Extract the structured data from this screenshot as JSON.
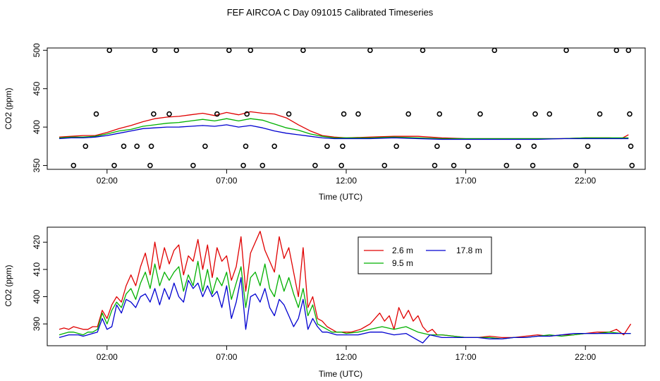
{
  "title": "FEF AIRCOA C  Day 091015  Calibrated Timeseries",
  "colors": {
    "s1": "#e00000",
    "s2": "#00b000",
    "s3": "#0000d0",
    "marker": "#000000"
  },
  "chart_data": [
    {
      "type": "line",
      "xlabel": "Time (UTC)",
      "ylabel": "CO2 (ppm)",
      "xlim": [
        -0.5,
        24.5
      ],
      "ylim": [
        345,
        503
      ],
      "xticks": [
        2,
        7,
        12,
        17,
        22
      ],
      "xtick_labels": [
        "02:00",
        "07:00",
        "12:00",
        "17:00",
        "22:00"
      ],
      "yticks": [
        350,
        400,
        450,
        500
      ],
      "ytick_labels": [
        "350",
        "400",
        "450",
        "500"
      ],
      "grid": false,
      "series": [
        {
          "key": "s1",
          "x": [
            0,
            0.5,
            1,
            1.5,
            2,
            2.5,
            3,
            3.5,
            4,
            4.5,
            5,
            5.5,
            6,
            6.5,
            7,
            7.5,
            8,
            8.5,
            9,
            9.5,
            10,
            10.5,
            11,
            11.5,
            12,
            13,
            14,
            15,
            16,
            17,
            18,
            19,
            20,
            21,
            22,
            23,
            23.5,
            23.8
          ],
          "y": [
            387,
            388,
            389,
            389,
            393,
            398,
            402,
            407,
            411,
            413,
            414,
            416,
            418,
            415,
            419,
            416,
            420,
            418,
            417,
            412,
            403,
            395,
            389,
            387,
            386,
            387,
            388,
            388,
            386,
            385,
            385,
            385,
            385,
            385,
            386,
            386,
            385,
            390
          ]
        },
        {
          "key": "s2",
          "x": [
            0,
            0.5,
            1,
            1.5,
            2,
            2.5,
            3,
            3.5,
            4,
            4.5,
            5,
            5.5,
            6,
            6.5,
            7,
            7.5,
            8,
            8.5,
            9,
            9.5,
            10,
            10.5,
            11,
            11.5,
            12,
            13,
            14,
            15,
            16,
            17,
            18,
            19,
            20,
            21,
            22,
            23,
            23.8
          ],
          "y": [
            386,
            387,
            387,
            388,
            391,
            395,
            397,
            401,
            403,
            405,
            406,
            408,
            410,
            408,
            411,
            408,
            411,
            409,
            404,
            399,
            396,
            391,
            388,
            386,
            386,
            386,
            387,
            386,
            385,
            385,
            385,
            385,
            385,
            385,
            386,
            386,
            386
          ]
        },
        {
          "key": "s3",
          "x": [
            0,
            0.5,
            1,
            1.5,
            2,
            2.5,
            3,
            3.5,
            4,
            4.5,
            5,
            5.5,
            6,
            6.5,
            7,
            7.5,
            8,
            8.5,
            9,
            9.5,
            10,
            10.5,
            11,
            11.5,
            12,
            13,
            14,
            15,
            16,
            17,
            18,
            19,
            20,
            21,
            22,
            23,
            23.8
          ],
          "y": [
            385,
            386,
            386,
            387,
            389,
            392,
            395,
            398,
            399,
            400,
            400,
            401,
            402,
            401,
            403,
            400,
            402,
            399,
            395,
            392,
            390,
            388,
            386,
            385,
            385,
            385,
            386,
            385,
            384,
            384,
            384,
            384,
            384,
            385,
            385,
            385,
            385
          ]
        },
        {
          "key": "marker",
          "type": "scatter",
          "x": [
            0.6,
            1.1,
            1.55,
            2.1,
            2.3,
            2.7,
            3.25,
            3.8,
            3.85,
            3.95,
            4.0,
            4.6,
            4.9,
            5.6,
            6.1,
            6.6,
            7.1,
            7.7,
            7.8,
            7.85,
            8.0,
            8.5,
            9.0,
            9.6,
            10.2,
            10.7,
            11.2,
            11.8,
            11.85,
            11.9,
            12.5,
            13.0,
            13.6,
            14.1,
            14.6,
            15.2,
            15.7,
            15.8,
            15.9,
            16.5,
            17.1,
            17.6,
            18.2,
            18.7,
            19.2,
            19.8,
            19.85,
            19.9,
            20.5,
            21.2,
            21.6,
            22.1,
            22.6,
            23.3,
            23.8,
            23.85,
            23.9,
            23.95
          ],
          "y": [
            350,
            375,
            417,
            500,
            350,
            375,
            375,
            350,
            375,
            417,
            500,
            417,
            500,
            350,
            375,
            417,
            500,
            350,
            375,
            417,
            500,
            350,
            375,
            417,
            500,
            350,
            375,
            350,
            375,
            417,
            417,
            500,
            350,
            375,
            417,
            500,
            350,
            375,
            417,
            350,
            375,
            417,
            500,
            350,
            375,
            350,
            375,
            417,
            417,
            500,
            350,
            375,
            417,
            500,
            500,
            417,
            375,
            350
          ]
        }
      ]
    },
    {
      "type": "line",
      "xlabel": "Time (UTC)",
      "ylabel": "CO2 (ppm)",
      "xlim": [
        -0.5,
        24.5
      ],
      "ylim": [
        382,
        425.5
      ],
      "xticks": [
        2,
        7,
        12,
        17,
        22
      ],
      "xtick_labels": [
        "02:00",
        "07:00",
        "12:00",
        "17:00",
        "22:00"
      ],
      "yticks": [
        390,
        400,
        410,
        420
      ],
      "ytick_labels": [
        "390",
        "400",
        "410",
        "420"
      ],
      "grid": false,
      "legend": "top-center",
      "series": [
        {
          "key": "s1",
          "name": "2.6 m",
          "x": [
            0,
            0.2,
            0.4,
            0.6,
            0.8,
            1,
            1.2,
            1.4,
            1.6,
            1.8,
            2,
            2.2,
            2.4,
            2.6,
            2.8,
            3,
            3.2,
            3.4,
            3.6,
            3.8,
            4,
            4.2,
            4.4,
            4.6,
            4.8,
            5,
            5.2,
            5.4,
            5.6,
            5.8,
            6,
            6.2,
            6.4,
            6.6,
            6.8,
            7,
            7.2,
            7.4,
            7.6,
            7.8,
            8,
            8.2,
            8.4,
            8.6,
            8.8,
            9,
            9.2,
            9.4,
            9.6,
            9.8,
            10,
            10.2,
            10.4,
            10.6,
            10.8,
            11,
            11.2,
            11.4,
            11.6,
            11.8,
            12,
            12.2,
            12.4,
            12.6,
            12.8,
            13,
            13.2,
            13.4,
            13.6,
            13.8,
            14,
            14.2,
            14.4,
            14.6,
            14.8,
            15,
            15.2,
            15.4,
            15.6,
            15.8,
            16,
            16.5,
            17,
            17.5,
            18,
            18.5,
            19,
            19.5,
            20,
            20.5,
            21,
            21.5,
            22,
            22.5,
            23,
            23.3,
            23.6,
            23.9
          ],
          "y": [
            388,
            388.5,
            388,
            389,
            388.5,
            388,
            388,
            389,
            389,
            395,
            392,
            397,
            400,
            398,
            404,
            408,
            404,
            411,
            416,
            408,
            420,
            410,
            418,
            412,
            417,
            419,
            408,
            415,
            413,
            421,
            410,
            419,
            407,
            418,
            413,
            415,
            406,
            411,
            422,
            402,
            416,
            420,
            424,
            417,
            413,
            409,
            422,
            414,
            418,
            409,
            400,
            418,
            396,
            400,
            392,
            391,
            389,
            388,
            387,
            387,
            387,
            387,
            387.5,
            388,
            389,
            390,
            392,
            394,
            391,
            393,
            388,
            396,
            392,
            395,
            391,
            393,
            389,
            387,
            388,
            386,
            386,
            385.5,
            385,
            385,
            385.5,
            385,
            385,
            385.5,
            386,
            385.5,
            386,
            386,
            386.5,
            387,
            387,
            388,
            386,
            390
          ]
        },
        {
          "key": "s2",
          "name": "9.5 m",
          "x": [
            0,
            0.2,
            0.4,
            0.6,
            0.8,
            1,
            1.2,
            1.4,
            1.6,
            1.8,
            2,
            2.2,
            2.4,
            2.6,
            2.8,
            3,
            3.2,
            3.4,
            3.6,
            3.8,
            4,
            4.2,
            4.4,
            4.6,
            4.8,
            5,
            5.2,
            5.4,
            5.6,
            5.8,
            6,
            6.2,
            6.4,
            6.6,
            6.8,
            7,
            7.2,
            7.4,
            7.6,
            7.8,
            8,
            8.2,
            8.4,
            8.6,
            8.8,
            9,
            9.2,
            9.4,
            9.6,
            9.8,
            10,
            10.2,
            10.4,
            10.6,
            10.8,
            11,
            11.2,
            11.4,
            11.6,
            11.8,
            12,
            12.5,
            13,
            13.5,
            14,
            14.5,
            15,
            15.5,
            16,
            16.5,
            17,
            17.5,
            18,
            18.5,
            19,
            19.5,
            20,
            20.5,
            21,
            21.5,
            22,
            22.5,
            23,
            23.5,
            23.9
          ],
          "y": [
            386,
            386.5,
            387,
            387,
            386.5,
            386,
            387,
            387,
            388,
            394,
            390,
            395,
            398,
            396,
            401,
            403,
            399,
            405,
            409,
            403,
            412,
            404,
            409,
            406,
            409,
            411,
            402,
            408,
            404,
            413,
            402,
            410,
            401,
            407,
            404,
            409,
            399,
            405,
            411,
            396,
            407,
            409,
            404,
            412,
            403,
            400,
            408,
            402,
            407,
            401,
            396,
            403,
            393,
            397,
            390,
            389,
            388,
            387,
            387,
            387,
            386.5,
            387,
            388,
            389,
            388,
            389,
            387,
            386,
            386,
            385.5,
            385,
            385,
            385,
            384.5,
            385,
            385,
            385.5,
            386,
            385.5,
            386,
            386.5,
            386.5,
            387,
            386.5,
            386.5
          ]
        },
        {
          "key": "s3",
          "name": "17.8 m",
          "x": [
            0,
            0.2,
            0.4,
            0.6,
            0.8,
            1,
            1.2,
            1.4,
            1.6,
            1.8,
            2,
            2.2,
            2.4,
            2.6,
            2.8,
            3,
            3.2,
            3.4,
            3.6,
            3.8,
            4,
            4.2,
            4.4,
            4.6,
            4.8,
            5,
            5.2,
            5.4,
            5.6,
            5.8,
            6,
            6.2,
            6.4,
            6.6,
            6.8,
            7,
            7.2,
            7.4,
            7.6,
            7.8,
            8,
            8.2,
            8.4,
            8.6,
            8.8,
            9,
            9.2,
            9.4,
            9.6,
            9.8,
            10,
            10.2,
            10.4,
            10.6,
            10.8,
            11,
            11.2,
            11.4,
            11.6,
            11.8,
            12,
            12.5,
            13,
            13.5,
            14,
            14.5,
            15,
            15.2,
            15.5,
            16,
            16.5,
            17,
            17.5,
            18,
            18.5,
            19,
            19.5,
            20,
            20.5,
            21,
            21.5,
            22,
            22.5,
            23,
            23.5,
            23.9
          ],
          "y": [
            385,
            385.5,
            386,
            386,
            386,
            385.5,
            386,
            386.5,
            387,
            392,
            388,
            389,
            397,
            394,
            399,
            398,
            396,
            400,
            401,
            398,
            403,
            397,
            403,
            399,
            405,
            400,
            398,
            406,
            403,
            405,
            400,
            404,
            400,
            402,
            396,
            404,
            392,
            398,
            407,
            388,
            400,
            401,
            398,
            403,
            396,
            393,
            399,
            397,
            393,
            389,
            392,
            399,
            388,
            392,
            389,
            387,
            387,
            386.5,
            386,
            386,
            386,
            386,
            387,
            387,
            386,
            386.5,
            384,
            383,
            386,
            385,
            385,
            385,
            385,
            384.5,
            384.5,
            385,
            385,
            385.5,
            385.5,
            386,
            386.5,
            386.5,
            386.5,
            386.5,
            386.5,
            386.5
          ]
        }
      ]
    }
  ]
}
